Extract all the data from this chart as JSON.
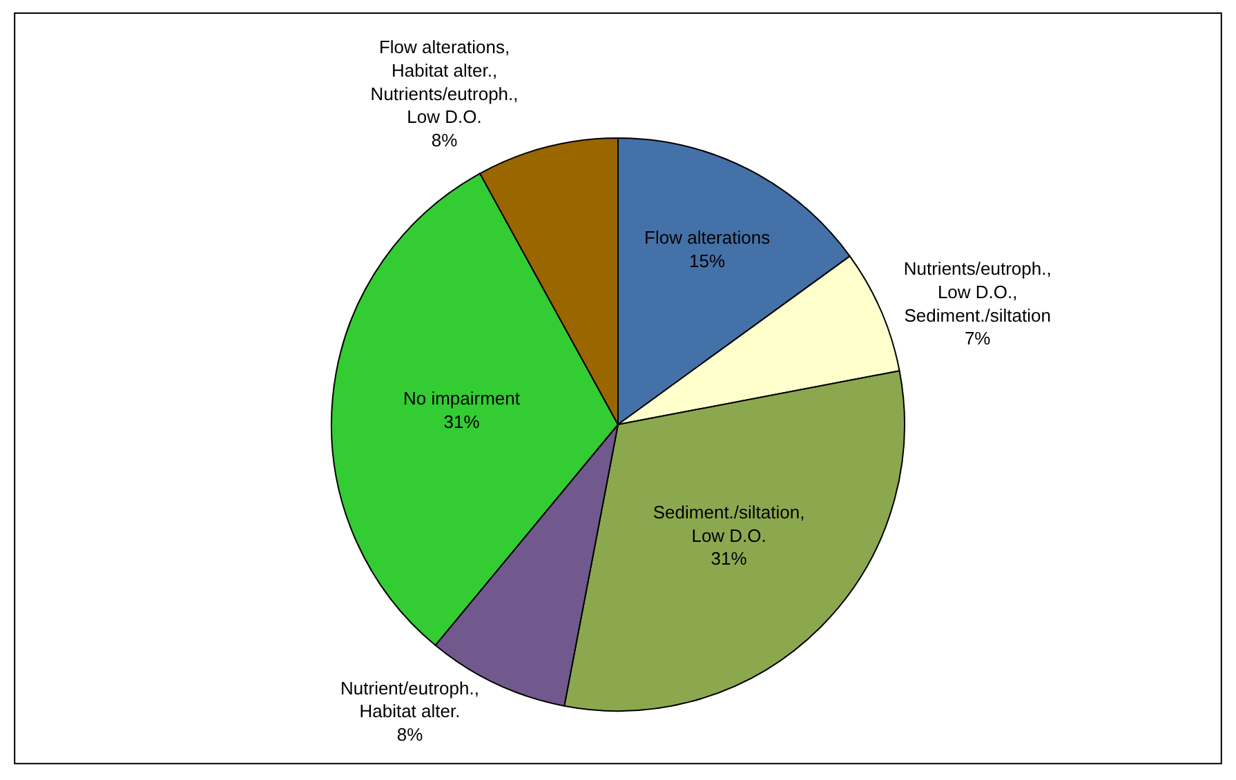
{
  "chart_data": {
    "type": "pie",
    "categories": [
      "Flow alterations",
      "Nutrients/eutroph.,\nLow D.O.,\nSediment./siltation",
      "Sediment./siltation,\nLow D.O.",
      "Nutrient/eutroph.,\nHabitat alter.",
      "No impairment",
      "Flow alterations,\nHabitat alter.,\nNutrients/eutroph.,\nLow D.O."
    ],
    "values": [
      15,
      7,
      31,
      8,
      31,
      8
    ],
    "value_labels": [
      "15%",
      "7%",
      "31%",
      "8%",
      "31%",
      "8%"
    ],
    "colors": [
      "#4471a7",
      "#ffffcc",
      "#8ca84f",
      "#71598d",
      "#33cc33",
      "#996600"
    ],
    "legend": false
  }
}
